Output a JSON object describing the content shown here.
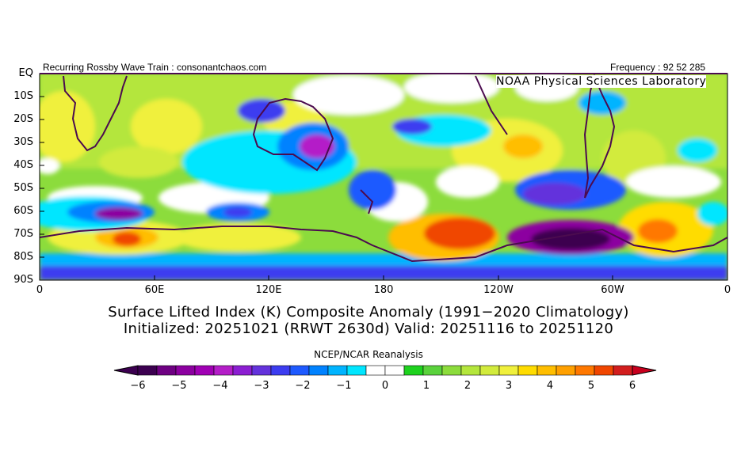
{
  "header": {
    "left": "Recurring Rossby Wave Train : consonantchaos.com",
    "right": "Frequency : 92 52 285",
    "lab": "NOAA Physical Sciences Laboratory"
  },
  "map": {
    "lat_labels": [
      "EQ",
      "10S",
      "20S",
      "30S",
      "40S",
      "50S",
      "60S",
      "70S",
      "80S",
      "90S"
    ],
    "lon_labels": [
      "0",
      "60E",
      "120E",
      "180",
      "120W",
      "60W",
      "0"
    ],
    "colors": {
      "coast": "#4b0b4f",
      "frame": "#000000"
    }
  },
  "title": {
    "line1": "Surface Lifted Index (K) Composite Anomaly (1991−2020 Climatology)",
    "line2": "Initialized: 20251021 (RRWT 2630d) Valid: 20251116 to 20251120"
  },
  "source": "NCEP/NCAR Reanalysis",
  "colorbar": {
    "labels": [
      "−6",
      "−5",
      "−4",
      "−3",
      "−2",
      "−1",
      "0",
      "1",
      "2",
      "3",
      "4",
      "5",
      "6"
    ],
    "colors": [
      "#3c0050",
      "#6e0082",
      "#8c00a0",
      "#a000b4",
      "#b41ec8",
      "#8c1ed2",
      "#6432dc",
      "#3c3cf0",
      "#1e5aff",
      "#0082ff",
      "#00b4ff",
      "#00e6ff",
      "#ffffff",
      "#ffffff",
      "#1ed21e",
      "#5ad23c",
      "#8cdc3c",
      "#b4e63c",
      "#d2eb3c",
      "#f0f03c",
      "#ffdc00",
      "#ffbe00",
      "#ffa000",
      "#ff7800",
      "#f04600",
      "#d21e1e"
    ],
    "low_arrow_color": "#3c0050",
    "high_arrow_color": "#c8001e"
  }
}
